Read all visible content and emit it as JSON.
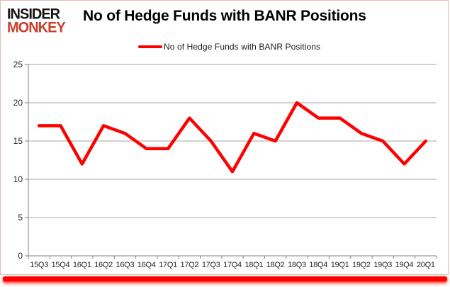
{
  "logo": {
    "line1": "INSIDER",
    "line2": "MONKEY",
    "line1_color": "#161412",
    "line2_color": "#c8402e"
  },
  "header": {
    "title": "No of Hedge Funds with BANR Positions"
  },
  "legend": {
    "label": "No of Hedge Funds with BANR Positions",
    "swatch_color": "#ff0000"
  },
  "chart_data": {
    "type": "line",
    "title": "No of Hedge Funds with BANR Positions",
    "categories": [
      "15Q3",
      "15Q4",
      "16Q1",
      "16Q2",
      "16Q3",
      "16Q4",
      "17Q1",
      "17Q2",
      "17Q3",
      "17Q4",
      "18Q1",
      "18Q2",
      "18Q3",
      "18Q4",
      "19Q1",
      "19Q2",
      "19Q3",
      "19Q4",
      "20Q1"
    ],
    "series": [
      {
        "name": "No of Hedge Funds with BANR Positions",
        "color": "#ff0000",
        "values": [
          17,
          17,
          12,
          17,
          16,
          14,
          14,
          18,
          15,
          11,
          16,
          15,
          20,
          18,
          18,
          16,
          15,
          12,
          15
        ]
      }
    ],
    "xlabel": "",
    "ylabel": "",
    "ylim": [
      0,
      25
    ],
    "y_ticks": [
      0,
      5,
      10,
      15,
      20,
      25
    ],
    "grid": true,
    "legend_position": "top",
    "gridline_color": "#a6a6a6",
    "axis_color": "#808080",
    "tick_label_color": "#262626"
  }
}
